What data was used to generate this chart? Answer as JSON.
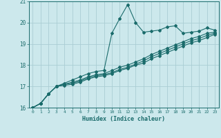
{
  "title": "",
  "xlabel": "Humidex (Indice chaleur)",
  "bg_color": "#cce8ec",
  "grid_color": "#aacdd4",
  "line_color": "#1a6b6b",
  "xlim": [
    -0.5,
    23.5
  ],
  "ylim": [
    16,
    21
  ],
  "xticks": [
    0,
    1,
    2,
    3,
    4,
    5,
    6,
    7,
    8,
    9,
    10,
    11,
    12,
    13,
    14,
    15,
    16,
    17,
    18,
    19,
    20,
    21,
    22,
    23
  ],
  "yticks": [
    16,
    17,
    18,
    19,
    20,
    21
  ],
  "lines": [
    [
      16.0,
      16.2,
      16.65,
      17.0,
      17.15,
      17.3,
      17.45,
      17.6,
      17.7,
      17.75,
      19.5,
      20.2,
      20.85,
      20.0,
      19.55,
      19.6,
      19.65,
      19.8,
      19.85,
      19.5,
      19.55,
      19.6,
      19.75,
      19.65
    ],
    [
      16.0,
      16.2,
      16.65,
      17.0,
      17.1,
      17.2,
      17.3,
      17.45,
      17.55,
      17.6,
      17.75,
      17.9,
      18.0,
      18.15,
      18.3,
      18.5,
      18.65,
      18.8,
      18.95,
      19.1,
      19.25,
      19.35,
      19.5,
      19.55
    ],
    [
      16.0,
      16.2,
      16.65,
      17.0,
      17.1,
      17.15,
      17.25,
      17.4,
      17.5,
      17.55,
      17.65,
      17.8,
      17.9,
      18.05,
      18.2,
      18.4,
      18.55,
      18.7,
      18.85,
      19.0,
      19.15,
      19.25,
      19.4,
      19.5
    ],
    [
      16.0,
      16.2,
      16.65,
      17.0,
      17.05,
      17.1,
      17.2,
      17.35,
      17.45,
      17.5,
      17.6,
      17.75,
      17.85,
      18.0,
      18.1,
      18.3,
      18.45,
      18.6,
      18.75,
      18.9,
      19.05,
      19.15,
      19.3,
      19.45
    ]
  ]
}
